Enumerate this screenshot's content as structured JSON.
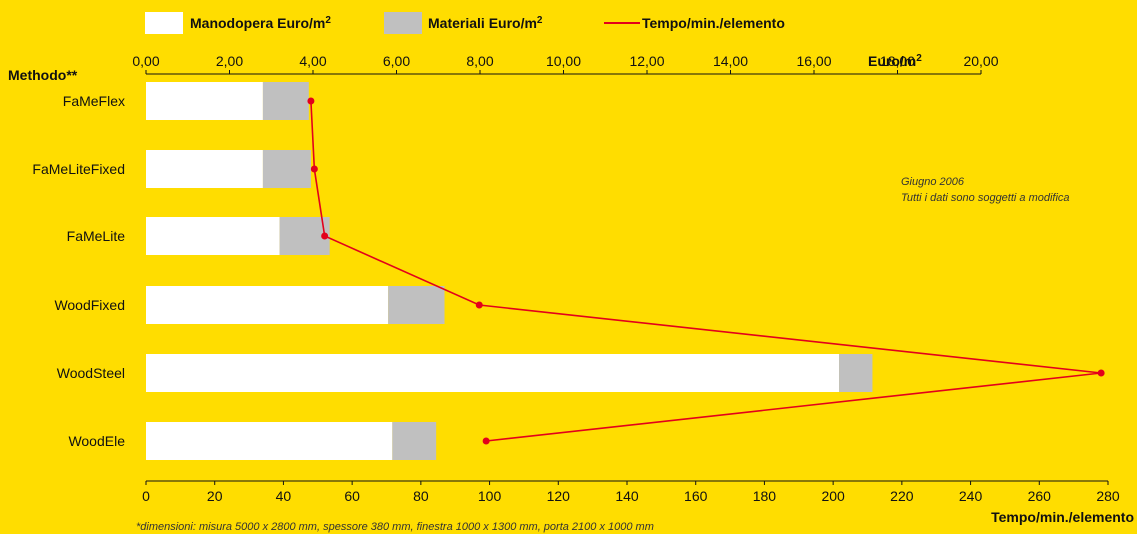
{
  "chart_data": {
    "type": "bar",
    "orientation": "horizontal",
    "stacked": true,
    "category_axis_label": "Methodo**",
    "categories": [
      "FaMeFlex",
      "FaMeLiteFixed",
      "FaMeLite",
      "WoodFixed",
      "WoodSteel",
      "WoodEle"
    ],
    "series": [
      {
        "name": "Manodopera Euro/m",
        "unit_sup": "2",
        "color": "#FFFFFF",
        "axis": "top",
        "values": [
          2.8,
          2.8,
          3.2,
          5.8,
          16.6,
          5.9
        ]
      },
      {
        "name": "Materiali Euro/m",
        "unit_sup": "2",
        "color": "#C0C0C0",
        "axis": "top",
        "values": [
          1.1,
          1.15,
          1.2,
          1.35,
          0.8,
          1.05
        ]
      },
      {
        "name": "Tempo/min./elemento",
        "type": "line",
        "color": "#E3001B",
        "axis": "bottom",
        "values": [
          48,
          49,
          52,
          97,
          278,
          99
        ]
      }
    ],
    "top_axis": {
      "label": "Euro/m",
      "label_sup": "2",
      "range": [
        0,
        20
      ],
      "ticks": [
        "0,00",
        "2,00",
        "4,00",
        "6,00",
        "8,00",
        "10,00",
        "12,00",
        "14,00",
        "16,00",
        "18,00",
        "20,00"
      ]
    },
    "bottom_axis": {
      "label": "Tempo/min./elemento",
      "range": [
        0,
        280
      ],
      "ticks": [
        "0",
        "20",
        "40",
        "60",
        "80",
        "100",
        "120",
        "140",
        "160",
        "180",
        "200",
        "220",
        "240",
        "260",
        "280"
      ]
    },
    "annotations": [
      "Giugno 2006",
      "Tutti i dati sono soggetti a modifica"
    ],
    "footnote": "*dimensioni: misura 5000 x 2800 mm, spessore 380 mm, finestra 1000 x 1300 mm, porta 2100 x 1000 mm",
    "legend_position": "top",
    "grid": false
  }
}
